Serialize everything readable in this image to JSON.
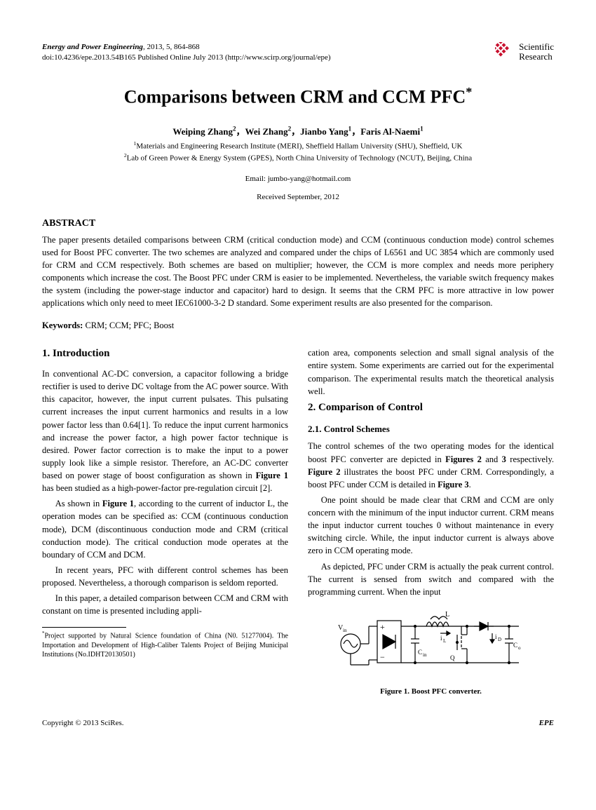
{
  "header": {
    "journal_name": "Energy and Power Engineering",
    "issue_info": ", 2013, 5, 864-868",
    "doi_line": "doi:10.4236/epe.2013.54B165 Published Online July 2013 (http://www.scirp.org/journal/epe)",
    "logo_line1": "Scientific",
    "logo_line2": "Research",
    "logo_color": "#c8102e"
  },
  "title": "Comparisons between CRM and CCM PFC",
  "title_sup": "*",
  "authors_html": "Weiping Zhang<sup>2</sup>，Wei Zhang<sup>2</sup>，Jianbo Yang<sup>1</sup>，Faris Al-Naemi<sup>1</sup>",
  "affiliations": [
    "<sup>1</sup>Materials and Engineering Research Institute (MERI), Sheffield Hallam University (SHU), Sheffield, UK",
    "<sup>2</sup>Lab of Green Power & Energy System (GPES), North China University of Technology (NCUT), Beijing, China"
  ],
  "email": "Email: jumbo-yang@hotmail.com",
  "received": "Received September, 2012",
  "abstract_heading": "ABSTRACT",
  "abstract_text": "The paper presents detailed comparisons between CRM (critical conduction mode) and CCM (continuous conduction mode) control schemes used for Boost PFC converter. The two schemes are analyzed and compared under the chips of L6561 and UC 3854 which are commonly used for CRM and CCM respectively. Both schemes are based on multiplier; however, the CCM is more complex and needs more periphery components which increase the cost. The Boost PFC under CRM is easier to be implemented. Nevertheless, the variable switch frequency makes the system (including the power-stage inductor and capacitor) hard to design. It seems that the CRM PFC is more attractive in low power applications which only need to meet IEC61000-3-2 D standard. Some experiment results are also presented for the comparison.",
  "keywords_label": "Keywords:",
  "keywords_text": " CRM; CCM; PFC; Boost",
  "sections": {
    "s1_heading": "1. Introduction",
    "s1_p1": "In conventional AC-DC conversion, a capacitor following a bridge rectifier is used to derive DC voltage from the AC power source. With this capacitor, however, the input current pulsates. This pulsating current increases the input current harmonics and results in a low power factor less than 0.64[1]. To reduce the input current harmonics and increase the power factor, a high power factor technique is desired. Power factor correction is to make the input to a power supply look like a simple resistor. Therefore, an AC-DC converter based on power stage of boost configuration as shown in <b>Figure 1</b> has been studied as a high-power-factor pre-regulation circuit [2].",
    "s1_p2": "As shown in <b>Figure 1</b>, according to the current of inductor L, the operation modes can be specified as: CCM (continuous conduction mode), DCM (discontinuous conduction mode and CRM (critical conduction mode). The critical conduction mode operates at the boundary of CCM and DCM.",
    "s1_p3": "In recent years, PFC with different control schemes has been proposed. Nevertheless, a thorough comparison is seldom reported.",
    "s1_p4": "In this paper, a detailed comparison between CCM and CRM with constant on time is presented including appli-",
    "s1_cont": "cation area, components selection and small signal analysis of the entire system. Some experiments are carried out for the experimental comparison. The experimental results match the theoretical analysis well.",
    "s2_heading": "2. Comparison of Control",
    "s21_heading": "2.1. Control Schemes",
    "s2_p1": "The control schemes of the two operating modes for the identical boost PFC converter are depicted in <b>Figures 2</b> and <b>3</b> respectively. <b>Figure 2</b> illustrates the boost PFC under CRM. Correspondingly, a boost PFC under CCM is detailed in <b>Figure 3</b>.",
    "s2_p2": "One point should be made clear that CRM and CCM are only concern with the minimum of the input inductor current. CRM means the input inductor current touches 0 without maintenance in every switching circle. While, the input inductor current is always above zero in CCM operating mode.",
    "s2_p3": "As depicted, PFC under CRM is actually the peak current control. The current is sensed from switch and compared with the programming current. When the input"
  },
  "footnote": "<sup>*</sup>Project supported by Natural Science foundation of China (N0. 51277004). The Importation and Development of High-Caliber Talents Project of Beijing Municipal Institutions (No.IDHT20130501)",
  "figure1_caption": "Figure 1. Boost PFC converter.",
  "footer": {
    "left": "Copyright © 2013 SciRes.",
    "right": "EPE"
  }
}
